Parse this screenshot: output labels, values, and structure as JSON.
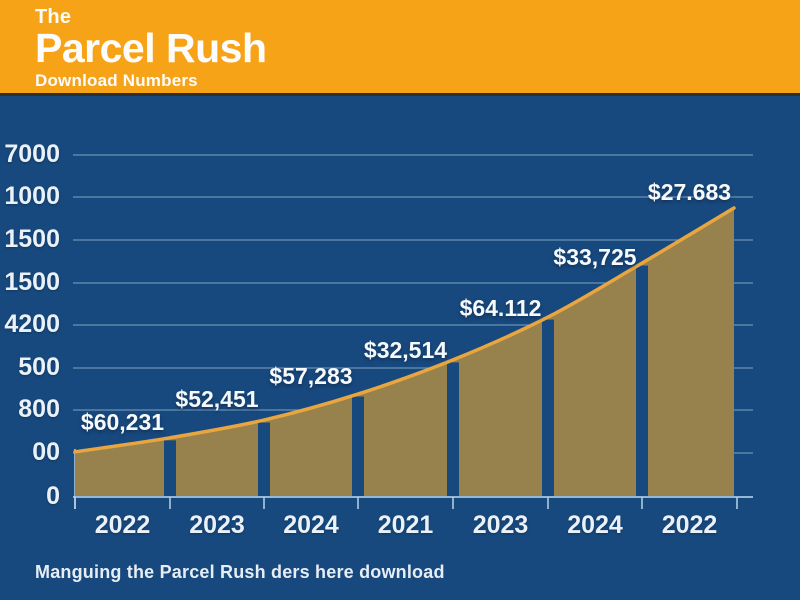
{
  "header": {
    "pretitle": "The",
    "title": "Parcel Rush",
    "subtitle": "Download Numbers"
  },
  "caption": "Manguing the Parcel Rush ders here download",
  "chart_data": {
    "type": "area",
    "title": "The Parcel Rush — Download Numbers",
    "categories": [
      "2022",
      "2023",
      "2024",
      "2021",
      "2023",
      "2024",
      "2022"
    ],
    "series": [
      {
        "name": "Downloads",
        "point_labels": [
          "$60,231",
          "$52,451",
          "$57,283",
          "$32,514",
          "$64.112",
          "$33,725",
          "$27.683"
        ]
      }
    ],
    "y_tick_labels": [
      "7000",
      "1000",
      "1500",
      "1500",
      "4200",
      "500",
      "800",
      "00",
      "0"
    ],
    "curve_profile": [
      0.132,
      0.173,
      0.225,
      0.301,
      0.401,
      0.526,
      0.684,
      0.845
    ],
    "grid": true,
    "legend": false,
    "layout_hint": "rising smooth area curve, area split into 7 blocks by background-colored vertical gaps at category boundaries",
    "colors": {
      "background": "#17497E",
      "header": "#F7A317",
      "header_divider": "#32301D",
      "area_fill": "#97824E",
      "line": "#E9A63E",
      "grid": "#AFCBE3",
      "text": "#F3F7FB"
    }
  }
}
